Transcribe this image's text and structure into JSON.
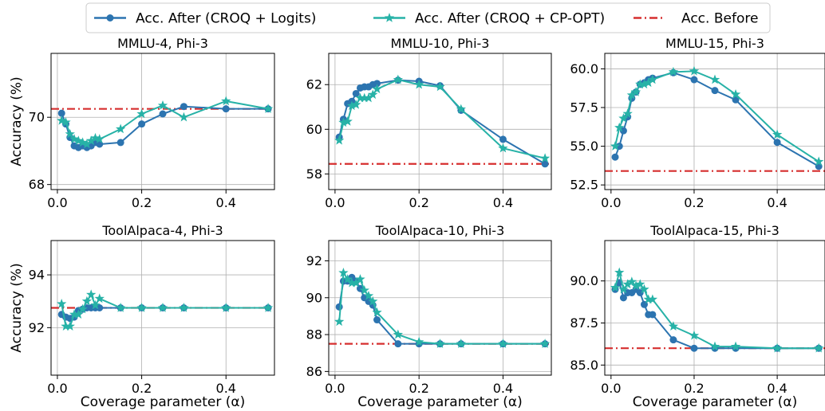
{
  "legend": {
    "items": [
      {
        "label": "Acc. After (CROQ + Logits)",
        "color": "#2c74b0",
        "marker": "circle",
        "dash": "solid"
      },
      {
        "label": "Acc. After (CROQ + CP-OPT)",
        "color": "#27b2a7",
        "marker": "star",
        "dash": "solid"
      },
      {
        "label": "Acc. Before",
        "color": "#d62f2f",
        "marker": "none",
        "dash": "dashdot"
      }
    ]
  },
  "shared": {
    "ylabel": "Accuracy (%)",
    "xlabel": "Coverage parameter (α)",
    "xticks": [
      0.0,
      0.2,
      0.4
    ],
    "xtick_labels": [
      "0.0",
      "0.2",
      "0.4"
    ],
    "xlim": [
      -0.015,
      0.515
    ],
    "alpha": [
      0.01,
      0.02,
      0.03,
      0.04,
      0.05,
      0.06,
      0.07,
      0.08,
      0.09,
      0.1,
      0.15,
      0.2,
      0.25,
      0.3,
      0.4,
      0.5
    ]
  },
  "chart_data": [
    {
      "type": "line",
      "title": "MMLU-4, Phi-3",
      "ylim": [
        67.85,
        71.9
      ],
      "yticks": [
        68,
        70
      ],
      "ytick_labels": [
        "68",
        "70"
      ],
      "baseline": 70.25,
      "series": [
        {
          "name": "Acc. After (CROQ + Logits)",
          "values": [
            70.12,
            69.8,
            69.4,
            69.15,
            69.1,
            69.15,
            69.1,
            69.15,
            69.25,
            69.2,
            69.25,
            69.8,
            70.1,
            70.32,
            70.25,
            70.25
          ]
        },
        {
          "name": "Acc. After (CROQ + CP-OPT)",
          "values": [
            69.9,
            69.85,
            69.5,
            69.35,
            69.3,
            69.25,
            69.2,
            69.3,
            69.38,
            69.35,
            69.65,
            70.1,
            70.35,
            70.0,
            70.48,
            70.25
          ]
        }
      ]
    },
    {
      "type": "line",
      "title": "MMLU-10, Phi-3",
      "ylim": [
        57.3,
        63.4
      ],
      "yticks": [
        58,
        60,
        62
      ],
      "ytick_labels": [
        "58",
        "60",
        "62"
      ],
      "baseline": 58.45,
      "series": [
        {
          "name": "Acc. After (CROQ + Logits)",
          "values": [
            59.65,
            60.45,
            61.15,
            61.25,
            61.6,
            61.85,
            61.9,
            61.9,
            62.0,
            62.05,
            62.2,
            62.15,
            61.95,
            60.85,
            59.55,
            58.45
          ]
        },
        {
          "name": "Acc. After (CROQ + CP-OPT)",
          "values": [
            59.5,
            60.3,
            60.35,
            61.05,
            61.1,
            61.4,
            61.4,
            61.4,
            61.55,
            61.8,
            62.22,
            62.0,
            61.9,
            60.9,
            59.15,
            58.7
          ]
        }
      ]
    },
    {
      "type": "line",
      "title": "MMLU-15, Phi-3",
      "ylim": [
        52.2,
        61.0
      ],
      "yticks": [
        52.5,
        55.0,
        57.5,
        60.0
      ],
      "ytick_labels": [
        "52.5",
        "55.0",
        "57.5",
        "60.0"
      ],
      "baseline": 53.4,
      "series": [
        {
          "name": "Acc. After (CROQ + Logits)",
          "values": [
            54.3,
            55.0,
            56.0,
            56.9,
            58.1,
            58.5,
            59.0,
            59.1,
            59.3,
            59.4,
            59.75,
            59.3,
            58.6,
            58.0,
            55.25,
            53.7
          ]
        },
        {
          "name": "Acc. After (CROQ + CP-OPT)",
          "values": [
            55.0,
            56.2,
            56.8,
            57.1,
            58.3,
            58.5,
            59.0,
            59.0,
            59.1,
            59.3,
            59.8,
            59.85,
            59.3,
            58.35,
            55.75,
            54.0
          ]
        }
      ]
    },
    {
      "type": "line",
      "title": "ToolAlpaca-4, Phi-3",
      "ylim": [
        90.2,
        95.3
      ],
      "yticks": [
        92,
        94
      ],
      "ytick_labels": [
        "92",
        "94"
      ],
      "baseline": 92.75,
      "series": [
        {
          "name": "Acc. After (CROQ + Logits)",
          "values": [
            92.5,
            92.4,
            92.35,
            92.4,
            92.65,
            92.7,
            92.75,
            92.75,
            92.75,
            92.75,
            92.75,
            92.75,
            92.75,
            92.75,
            92.75,
            92.75
          ]
        },
        {
          "name": "Acc. After (CROQ + CP-OPT)",
          "values": [
            92.9,
            92.05,
            92.05,
            92.5,
            92.5,
            92.7,
            93.0,
            93.25,
            92.85,
            93.1,
            92.75,
            92.75,
            92.75,
            92.75,
            92.75,
            92.75
          ]
        }
      ]
    },
    {
      "type": "line",
      "title": "ToolAlpaca-10, Phi-3",
      "ylim": [
        85.8,
        93.1
      ],
      "yticks": [
        86,
        88,
        90,
        92
      ],
      "ytick_labels": [
        "86",
        "88",
        "90",
        "92"
      ],
      "baseline": 87.5,
      "series": [
        {
          "name": "Acc. After (CROQ + Logits)",
          "values": [
            89.5,
            90.9,
            90.9,
            91.1,
            90.9,
            90.5,
            90.0,
            89.8,
            89.6,
            88.8,
            87.5,
            87.5,
            87.5,
            87.5,
            87.5,
            87.5
          ]
        },
        {
          "name": "Acc. After (CROQ + CP-OPT)",
          "values": [
            88.7,
            91.35,
            91.0,
            90.8,
            90.8,
            91.0,
            90.4,
            90.1,
            89.8,
            89.2,
            88.0,
            87.6,
            87.5,
            87.5,
            87.5,
            87.5
          ]
        }
      ]
    },
    {
      "type": "line",
      "title": "ToolAlpaca-15, Phi-3",
      "ylim": [
        84.4,
        92.4
      ],
      "yticks": [
        85.0,
        87.5,
        90.0
      ],
      "ytick_labels": [
        "85.0",
        "87.5",
        "90.0"
      ],
      "baseline": 86.0,
      "series": [
        {
          "name": "Acc. After (CROQ + Logits)",
          "values": [
            89.5,
            89.9,
            89.0,
            89.3,
            89.3,
            89.5,
            89.3,
            88.6,
            88.0,
            88.0,
            86.5,
            86.0,
            86.0,
            86.0,
            86.0,
            86.0
          ]
        },
        {
          "name": "Acc. After (CROQ + CP-OPT)",
          "values": [
            89.6,
            90.5,
            89.5,
            89.8,
            89.95,
            89.7,
            89.8,
            89.5,
            88.9,
            88.9,
            87.3,
            86.75,
            86.1,
            86.1,
            86.0,
            86.0
          ]
        }
      ]
    }
  ]
}
